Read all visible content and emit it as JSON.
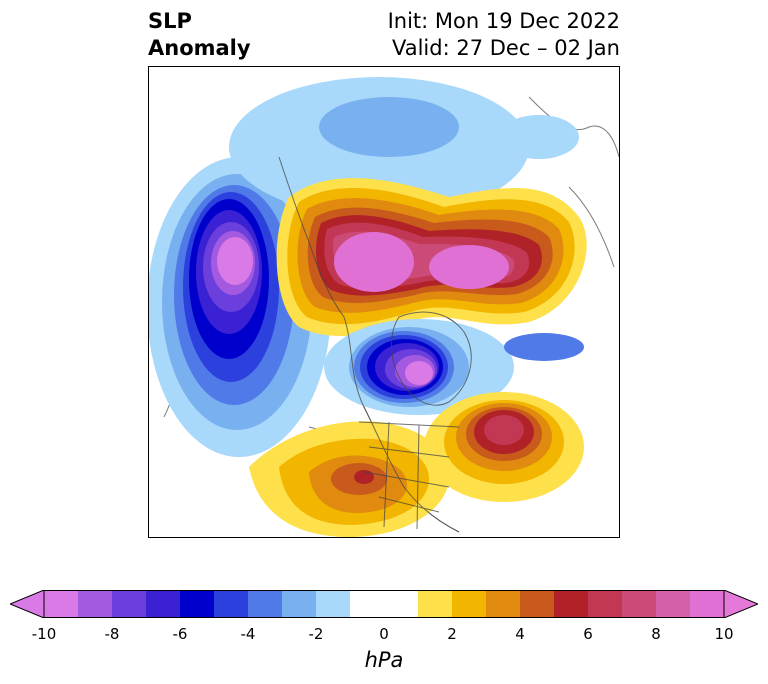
{
  "title": {
    "variable_line1": "SLP",
    "variable_line2": "Anomaly",
    "init": "Init: Mon 19 Dec 2022",
    "valid": "Valid: 27 Dec – 02 Jan"
  },
  "colorbar": {
    "units": "hPa",
    "ticks": [
      "-10",
      "-8",
      "-6",
      "-4",
      "-2",
      "0",
      "2",
      "4",
      "6",
      "8",
      "10"
    ],
    "extend": "both",
    "under_color": "#d97ae6",
    "over_color": "#e579d9",
    "colors": [
      "#d97ae6",
      "#a45ae0",
      "#6a3fdc",
      "#3a22d4",
      "#0000cc",
      "#2b40dd",
      "#4f7ae8",
      "#78b0f0",
      "#a8d8fa",
      "#ffffff",
      "#ffffff",
      "#fde04a",
      "#f2b500",
      "#e08a10",
      "#c85a1c",
      "#b02228",
      "#c23854",
      "#cc4a78",
      "#d460a8",
      "#e070d4"
    ]
  },
  "map": {
    "projection": "north-polar-stereographic",
    "region": "North America and Arctic",
    "features": [
      {
        "name": "negative anomaly over northeast Pacific / Gulf of Alaska",
        "min_hPa": -10
      },
      {
        "name": "positive anomaly over Alaska, Arctic and Canadian Archipelago",
        "max_hPa": 10
      },
      {
        "name": "negative anomaly over Hudson Bay / eastern Canada",
        "min_hPa": -10
      },
      {
        "name": "positive anomaly over central North Atlantic",
        "max_hPa": 7
      },
      {
        "name": "positive anomaly over central/southern United States",
        "max_hPa": 6
      }
    ]
  }
}
